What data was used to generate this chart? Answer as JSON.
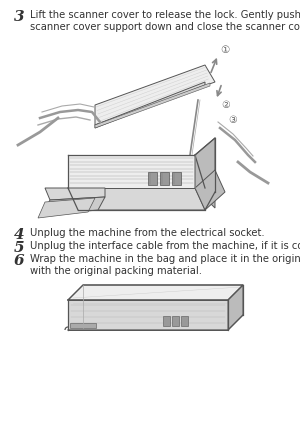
{
  "bg_color": "#ffffff",
  "step3_number": "3",
  "step3_text": "Lift the scanner cover to release the lock. Gently push the\nscanner cover support down and close the scanner cover.",
  "step4_number": "4",
  "step4_text": "Unplug the machine from the electrical socket.",
  "step5_number": "5",
  "step5_text": "Unplug the interface cable from the machine, if it is connected.",
  "step6_number": "6",
  "step6_text": "Wrap the machine in the bag and place it in the original carton\nwith the original packing material.",
  "font_size_number": 9,
  "font_size_text": 7.2,
  "text_color": "#333333",
  "number_color": "#333333",
  "line_color": "#555555",
  "fill_light": "#eeeeee",
  "fill_mid": "#d8d8d8",
  "fill_dark": "#bbbbbb",
  "fill_stripe": "#c0c0c0"
}
